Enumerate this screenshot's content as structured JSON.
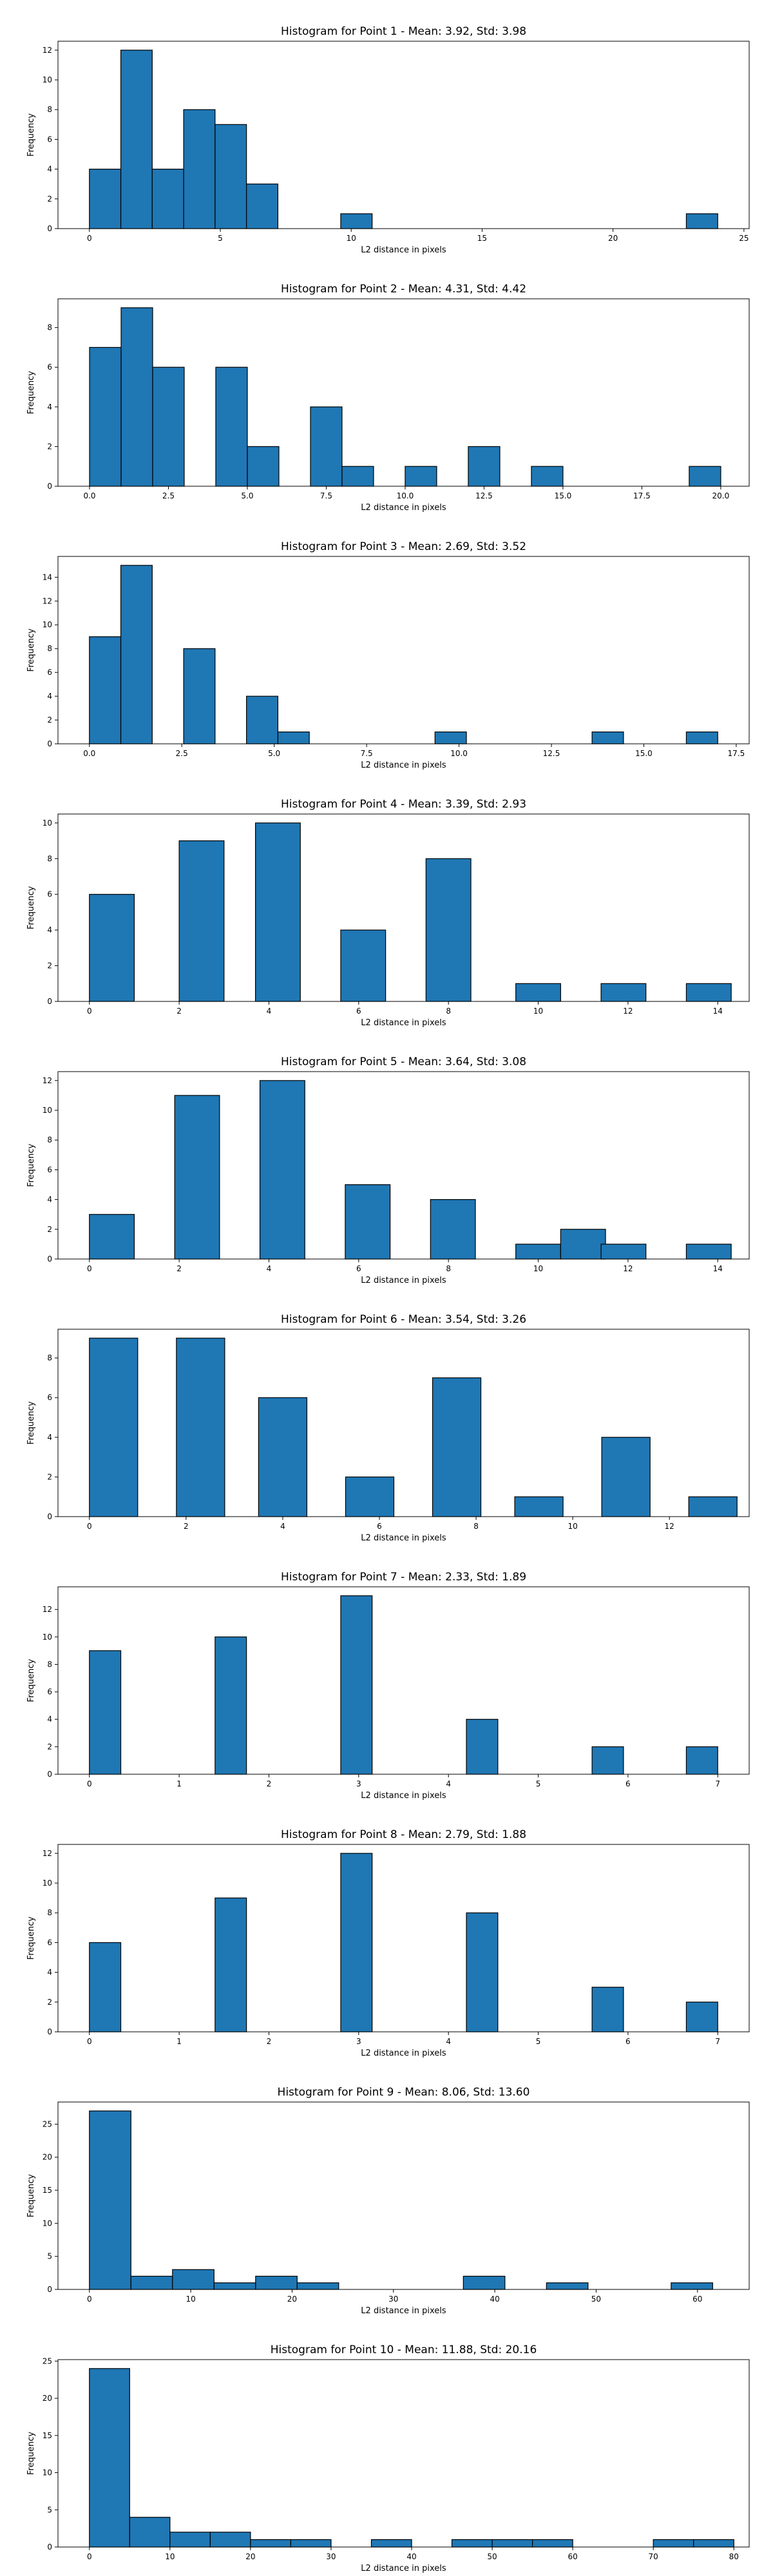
{
  "chart_data": [
    {
      "type": "bar",
      "title": "Histogram for Point 1 - Mean: 3.92, Std: 3.98",
      "xlabel": "L2 distance in pixels",
      "ylabel": "Frequency",
      "xlim": [
        -1.2,
        25.2
      ],
      "ylim": [
        0,
        12.6
      ],
      "xticks": [
        0,
        5,
        10,
        15,
        20,
        25
      ],
      "xtick_labels": [
        "0",
        "5",
        "10",
        "15",
        "20",
        "25"
      ],
      "yticks": [
        0,
        2,
        4,
        6,
        8,
        10,
        12
      ],
      "bins": [
        [
          0,
          1.2
        ],
        [
          1.2,
          2.4
        ],
        [
          2.4,
          3.6
        ],
        [
          3.6,
          4.8
        ],
        [
          4.8,
          6.0
        ],
        [
          6.0,
          7.2
        ],
        [
          9.6,
          10.8
        ],
        [
          22.8,
          24.0
        ]
      ],
      "values": [
        4,
        12,
        4,
        8,
        7,
        3,
        1,
        1
      ]
    },
    {
      "type": "bar",
      "title": "Histogram for Point 2 - Mean: 4.31, Std: 4.42",
      "xlabel": "L2 distance in pixels",
      "ylabel": "Frequency",
      "xlim": [
        -1.0,
        20.9
      ],
      "ylim": [
        0,
        9.45
      ],
      "xticks": [
        0,
        2.5,
        5,
        7.5,
        10,
        12.5,
        15,
        17.5,
        20
      ],
      "xtick_labels": [
        "0.0",
        "2.5",
        "5.0",
        "7.5",
        "10.0",
        "12.5",
        "15.0",
        "17.5",
        "20.0"
      ],
      "yticks": [
        0,
        2,
        4,
        6,
        8
      ],
      "bins": [
        [
          0,
          1
        ],
        [
          1,
          2
        ],
        [
          2,
          3
        ],
        [
          4,
          5
        ],
        [
          5,
          6
        ],
        [
          7,
          8
        ],
        [
          8,
          9
        ],
        [
          10,
          11
        ],
        [
          12,
          13
        ],
        [
          14,
          15
        ],
        [
          19,
          20
        ]
      ],
      "values": [
        7,
        9,
        6,
        6,
        2,
        4,
        1,
        1,
        2,
        1,
        1
      ]
    },
    {
      "type": "bar",
      "title": "Histogram for Point 3 - Mean: 2.69, Std: 3.52",
      "xlabel": "L2 distance in pixels",
      "ylabel": "Frequency",
      "xlim": [
        -0.85,
        17.85
      ],
      "ylim": [
        0,
        15.75
      ],
      "xticks": [
        0,
        2.5,
        5,
        7.5,
        10,
        12.5,
        15,
        17.5
      ],
      "xtick_labels": [
        "0.0",
        "2.5",
        "5.0",
        "7.5",
        "10.0",
        "12.5",
        "15.0",
        "17.5"
      ],
      "yticks": [
        0,
        2,
        4,
        6,
        8,
        10,
        12,
        14
      ],
      "bins": [
        [
          0,
          0.85
        ],
        [
          0.85,
          1.7
        ],
        [
          2.55,
          3.4
        ],
        [
          4.25,
          5.1
        ],
        [
          5.1,
          5.95
        ],
        [
          9.35,
          10.2
        ],
        [
          13.6,
          14.45
        ],
        [
          16.15,
          17.0
        ]
      ],
      "values": [
        9,
        15,
        8,
        4,
        1,
        1,
        1,
        1
      ]
    },
    {
      "type": "bar",
      "title": "Histogram for Point 4 - Mean: 3.39, Std: 2.93",
      "xlabel": "L2 distance in pixels",
      "ylabel": "Frequency",
      "xlim": [
        -0.7,
        14.7
      ],
      "ylim": [
        0,
        10.5
      ],
      "xticks": [
        0,
        2,
        4,
        6,
        8,
        10,
        12,
        14
      ],
      "xtick_labels": [
        "0",
        "2",
        "4",
        "6",
        "8",
        "10",
        "12",
        "14"
      ],
      "yticks": [
        0,
        2,
        4,
        6,
        8,
        10
      ],
      "bins": [
        [
          0,
          1
        ],
        [
          2,
          3
        ],
        [
          3.7,
          4.7
        ],
        [
          5.6,
          6.6
        ],
        [
          7.5,
          8.5
        ],
        [
          9.5,
          10.5
        ],
        [
          11.4,
          12.4
        ],
        [
          13.3,
          14.3
        ]
      ],
      "values": [
        6,
        9,
        10,
        4,
        8,
        1,
        1,
        1
      ]
    },
    {
      "type": "bar",
      "title": "Histogram for Point 5 - Mean: 3.64, Std: 3.08",
      "xlabel": "L2 distance in pixels",
      "ylabel": "Frequency",
      "xlim": [
        -0.7,
        14.7
      ],
      "ylim": [
        0,
        12.6
      ],
      "xticks": [
        0,
        2,
        4,
        6,
        8,
        10,
        12,
        14
      ],
      "xtick_labels": [
        "0",
        "2",
        "4",
        "6",
        "8",
        "10",
        "12",
        "14"
      ],
      "yticks": [
        0,
        2,
        4,
        6,
        8,
        10,
        12
      ],
      "bins": [
        [
          0,
          1
        ],
        [
          1.9,
          2.9
        ],
        [
          3.8,
          4.8
        ],
        [
          5.7,
          6.7
        ],
        [
          7.6,
          8.6
        ],
        [
          9.5,
          10.5
        ],
        [
          10.5,
          11.5
        ],
        [
          11.4,
          12.4
        ],
        [
          13.3,
          14.3
        ]
      ],
      "values": [
        3,
        11,
        12,
        5,
        4,
        1,
        2,
        1,
        1
      ]
    },
    {
      "type": "bar",
      "title": "Histogram for Point 6 - Mean: 3.54, Std: 3.26",
      "xlabel": "L2 distance in pixels",
      "ylabel": "Frequency",
      "xlim": [
        -0.65,
        13.65
      ],
      "ylim": [
        0,
        9.45
      ],
      "xticks": [
        0,
        2,
        4,
        6,
        8,
        10,
        12
      ],
      "xtick_labels": [
        "0",
        "2",
        "4",
        "6",
        "8",
        "10",
        "12"
      ],
      "yticks": [
        0,
        2,
        4,
        6,
        8
      ],
      "bins": [
        [
          0,
          1
        ],
        [
          1.8,
          2.8
        ],
        [
          3.5,
          4.5
        ],
        [
          5.3,
          6.3
        ],
        [
          7.1,
          8.1
        ],
        [
          8.8,
          9.8
        ],
        [
          10.6,
          11.6
        ],
        [
          12.4,
          13.4
        ]
      ],
      "values": [
        9,
        9,
        6,
        2,
        7,
        1,
        4,
        1
      ]
    },
    {
      "type": "bar",
      "title": "Histogram for Point 7 - Mean: 2.33, Std: 1.89",
      "xlabel": "L2 distance in pixels",
      "ylabel": "Frequency",
      "xlim": [
        -0.35,
        7.35
      ],
      "ylim": [
        0,
        13.65
      ],
      "xticks": [
        0,
        1,
        2,
        3,
        4,
        5,
        6,
        7
      ],
      "xtick_labels": [
        "0",
        "1",
        "2",
        "3",
        "4",
        "5",
        "6",
        "7"
      ],
      "yticks": [
        0,
        2,
        4,
        6,
        8,
        10,
        12
      ],
      "bins": [
        [
          0,
          0.35
        ],
        [
          1.4,
          1.75
        ],
        [
          2.8,
          3.15
        ],
        [
          4.2,
          4.55
        ],
        [
          5.6,
          5.95
        ],
        [
          6.65,
          7.0
        ]
      ],
      "values": [
        9,
        10,
        13,
        4,
        2,
        2
      ]
    },
    {
      "type": "bar",
      "title": "Histogram for Point 8 - Mean: 2.79, Std: 1.88",
      "xlabel": "L2 distance in pixels",
      "ylabel": "Frequency",
      "xlim": [
        -0.35,
        7.35
      ],
      "ylim": [
        0,
        12.6
      ],
      "xticks": [
        0,
        1,
        2,
        3,
        4,
        5,
        6,
        7
      ],
      "xtick_labels": [
        "0",
        "1",
        "2",
        "3",
        "4",
        "5",
        "6",
        "7"
      ],
      "yticks": [
        0,
        2,
        4,
        6,
        8,
        10,
        12
      ],
      "bins": [
        [
          0,
          0.35
        ],
        [
          1.4,
          1.75
        ],
        [
          2.8,
          3.15
        ],
        [
          4.2,
          4.55
        ],
        [
          5.6,
          5.95
        ],
        [
          6.65,
          7.0
        ]
      ],
      "values": [
        6,
        9,
        12,
        8,
        3,
        2
      ]
    },
    {
      "type": "bar",
      "title": "Histogram for Point 9 - Mean: 8.06, Std: 13.60",
      "xlabel": "L2 distance in pixels",
      "ylabel": "Frequency",
      "xlim": [
        -3.1,
        65.1
      ],
      "ylim": [
        0,
        28.35
      ],
      "xticks": [
        0,
        10,
        20,
        30,
        40,
        50,
        60
      ],
      "xtick_labels": [
        "0",
        "10",
        "20",
        "30",
        "40",
        "50",
        "60"
      ],
      "yticks": [
        0,
        5,
        10,
        15,
        20,
        25
      ],
      "bins": [
        [
          0,
          4.1
        ],
        [
          4.1,
          8.2
        ],
        [
          8.2,
          12.3
        ],
        [
          12.3,
          16.4
        ],
        [
          16.4,
          20.5
        ],
        [
          20.5,
          24.6
        ],
        [
          36.9,
          41.0
        ],
        [
          45.1,
          49.2
        ],
        [
          57.4,
          61.5
        ]
      ],
      "values": [
        27,
        2,
        3,
        1,
        2,
        1,
        2,
        1,
        1
      ]
    },
    {
      "type": "bar",
      "title": "Histogram for Point 10 - Mean: 11.88, Std: 20.16",
      "xlabel": "L2 distance in pixels",
      "ylabel": "Frequency",
      "xlim": [
        -3.9,
        81.9
      ],
      "ylim": [
        0,
        25.2
      ],
      "xticks": [
        0,
        10,
        20,
        30,
        40,
        50,
        60,
        70,
        80
      ],
      "xtick_labels": [
        "0",
        "10",
        "20",
        "30",
        "40",
        "50",
        "60",
        "70",
        "80"
      ],
      "yticks": [
        0,
        5,
        10,
        15,
        20,
        25
      ],
      "bins": [
        [
          0,
          5
        ],
        [
          5,
          10
        ],
        [
          10,
          15
        ],
        [
          15,
          20
        ],
        [
          20,
          25
        ],
        [
          25,
          30
        ],
        [
          35,
          40
        ],
        [
          45,
          50
        ],
        [
          50,
          55
        ],
        [
          55,
          60
        ],
        [
          70,
          75
        ],
        [
          75,
          80
        ]
      ],
      "values": [
        24,
        4,
        2,
        2,
        1,
        1,
        1,
        1,
        1,
        1,
        1,
        1
      ]
    }
  ]
}
